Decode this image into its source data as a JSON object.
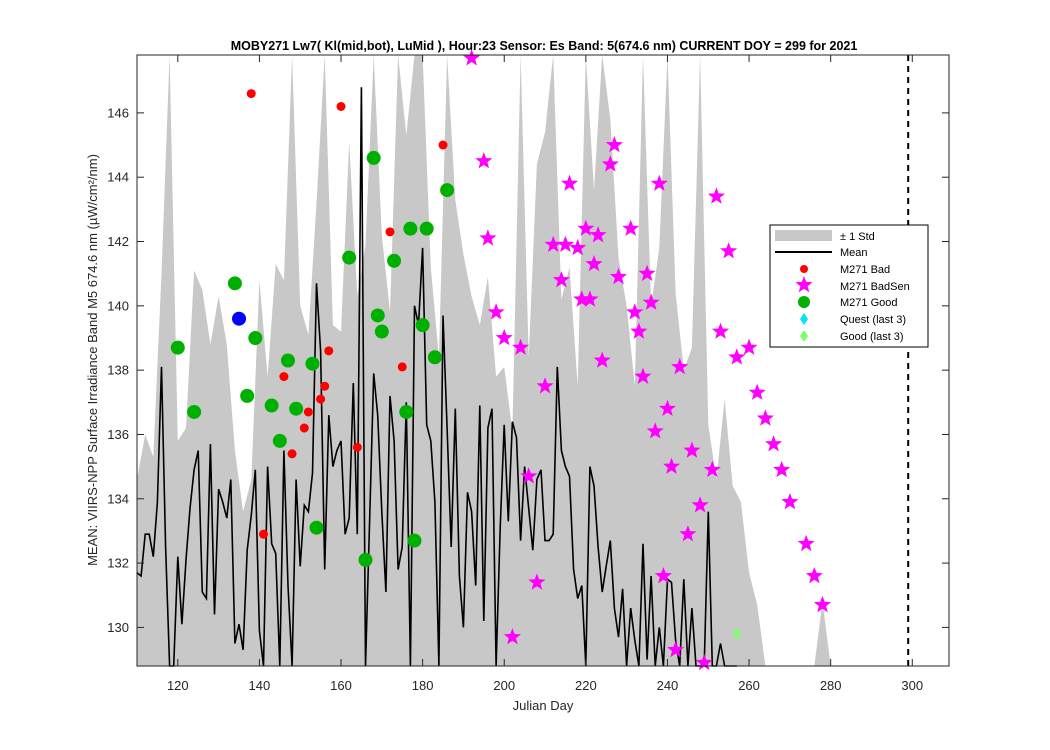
{
  "chart_data": {
    "type": "scatter",
    "title": "MOBY271   Lw7( Kl(mid,bot), LuMid ),    Hour:23 Sensor: Es Band: 5(674.6 nm)   CURRENT DOY = 299 for 2021",
    "xlabel": "Julian Day",
    "ylabel": "MEAN: VIIRS-NPP Surface Irradiance Band M5 674.6 nm (µW/cm²/nm)",
    "xlim": [
      110,
      309
    ],
    "ylim": [
      128.8,
      147.8
    ],
    "xticks": [
      120,
      140,
      160,
      180,
      200,
      220,
      240,
      260,
      280,
      300
    ],
    "yticks": [
      130,
      132,
      134,
      136,
      138,
      140,
      142,
      144,
      146
    ],
    "current_doy": 299,
    "grid": false,
    "legend_position": "right",
    "legend": [
      "± 1 Std",
      "Mean",
      "M271 Bad",
      "M271 BadSen",
      "M271 Good",
      "Quest (last 3)",
      "Good (last 3)"
    ],
    "colors": {
      "std_band": "#c8c8c8",
      "mean": "#000000",
      "bad": "#ff0000",
      "badsen": "#ff00ff",
      "good": "#00b000",
      "quest": "#00e5ee",
      "good_last3": "#7cff6b",
      "highlight": "#0000ff"
    },
    "mean_series": {
      "x": [
        110,
        111,
        112,
        113,
        114,
        115,
        116,
        117,
        118,
        119,
        120,
        121,
        122,
        123,
        124,
        125,
        126,
        127,
        128,
        129,
        130,
        131,
        132,
        133,
        134,
        135,
        136,
        137,
        138,
        139,
        140,
        141,
        142,
        143,
        144,
        145,
        146,
        147,
        148,
        149,
        150,
        151,
        152,
        153,
        154,
        155,
        156,
        157,
        158,
        159,
        160,
        161,
        162,
        163,
        164,
        165,
        166,
        167,
        168,
        169,
        170,
        171,
        172,
        173,
        174,
        175,
        176,
        177,
        178,
        179,
        180,
        181,
        182,
        183,
        184,
        185,
        186,
        187,
        188,
        189,
        190,
        191,
        192,
        193,
        194,
        195,
        196,
        197,
        198,
        199,
        200,
        201,
        202,
        203,
        204,
        205,
        206,
        207,
        208,
        209,
        210,
        211,
        212,
        213,
        214,
        215,
        216,
        217,
        218,
        219,
        220,
        221,
        222,
        223,
        224,
        225,
        226,
        227,
        228,
        229,
        230,
        231,
        232,
        233,
        234,
        235,
        236,
        237,
        238,
        239,
        240,
        241,
        242,
        243,
        244,
        245,
        246,
        247,
        248,
        249,
        250,
        251,
        252,
        253,
        254,
        255,
        256,
        257
      ],
      "y": [
        131.7,
        131.6,
        132.9,
        132.9,
        132.2,
        133.9,
        138.1,
        132.5,
        128.8,
        128.8,
        132.2,
        130.1,
        132.1,
        133.7,
        134.9,
        135.5,
        131.1,
        130.9,
        135.7,
        130.4,
        134.3,
        133.9,
        133.4,
        134.6,
        129.5,
        130.1,
        129.3,
        132.4,
        133.5,
        134.9,
        129.9,
        128.8,
        135.0,
        132.6,
        132.3,
        128.8,
        135.5,
        131.3,
        128.8,
        134.6,
        131.9,
        133.8,
        133.6,
        134.8,
        140.7,
        138.6,
        131.8,
        136.6,
        135.0,
        135.5,
        135.8,
        132.9,
        133.4,
        137.6,
        132.9,
        146.8,
        128.8,
        133.3,
        137.9,
        136.6,
        133.6,
        131.1,
        137.2,
        135.8,
        131.8,
        132.5,
        137.0,
        128.8,
        140.0,
        139.4,
        141.8,
        136.3,
        135.8,
        133.9,
        128.8,
        139.7,
        136.2,
        132.5,
        136.8,
        131.6,
        130.0,
        134.2,
        133.6,
        131.3,
        136.9,
        130.2,
        136.2,
        136.8,
        128.8,
        133.1,
        136.3,
        133.3,
        136.4,
        135.9,
        132.7,
        135.0,
        133.7,
        132.4,
        134.6,
        134.9,
        132.7,
        132.7,
        132.9,
        138.1,
        135.5,
        135.0,
        134.7,
        131.8,
        130.9,
        131.3,
        128.8,
        135.0,
        134.4,
        132.5,
        131.1,
        131.9,
        132.7,
        130.6,
        129.7,
        131.2,
        128.8,
        130.6,
        129.6,
        128.8,
        132.6,
        129.0,
        131.6,
        128.8,
        130.0,
        128.8,
        131.5,
        131.4,
        129.6,
        128.8,
        131.5,
        128.8,
        130.6,
        128.8,
        128.8,
        128.8,
        133.6,
        128.8,
        128.8,
        129.5,
        128.8,
        128.8,
        128.8,
        128.8
      ]
    },
    "std_band": {
      "x": [
        110,
        112,
        114,
        116,
        118,
        120,
        122,
        124,
        126,
        128,
        130,
        132,
        134,
        136,
        138,
        140,
        142,
        144,
        146,
        148,
        150,
        152,
        154,
        156,
        158,
        160,
        162,
        164,
        166,
        168,
        170,
        172,
        174,
        176,
        178,
        180,
        182,
        184,
        186,
        188,
        190,
        192,
        194,
        196,
        198,
        200,
        202,
        204,
        206,
        208,
        210,
        212,
        214,
        216,
        218,
        220,
        222,
        224,
        226,
        228,
        230,
        232,
        234,
        236,
        238,
        240,
        242,
        244,
        246,
        248,
        250,
        252,
        254,
        256,
        258,
        260,
        262,
        264,
        266,
        268,
        270,
        272,
        274,
        276,
        278,
        280
      ],
      "upper": [
        134.6,
        136.0,
        135.3,
        141.0,
        147.8,
        135.8,
        136.2,
        141.1,
        140.5,
        138.8,
        140.3,
        138.8,
        135.5,
        133.6,
        134.6,
        140.8,
        137.8,
        141.3,
        140.8,
        147.8,
        140.0,
        139.1,
        143.2,
        147.8,
        139.4,
        139.2,
        145.1,
        140.3,
        141.9,
        147.8,
        142.2,
        139.8,
        147.8,
        145.3,
        147.8,
        147.8,
        141.2,
        138.4,
        147.8,
        143.3,
        141.6,
        140.3,
        139.4,
        140.9,
        137.8,
        138.1,
        136.1,
        147.8,
        138.4,
        144.4,
        145.4,
        147.8,
        140.2,
        141.2,
        137.5,
        147.8,
        143.6,
        147.8,
        145.8,
        141.5,
        140.0,
        137.5,
        147.8,
        140.0,
        141.8,
        147.8,
        140.4,
        138.0,
        138.7,
        147.8,
        136.3,
        134.6,
        137.1,
        134.4,
        133.9,
        131.7,
        130.7,
        128.8,
        128.8,
        128.8,
        128.8,
        128.8,
        128.8,
        128.8,
        130.8,
        128.8
      ],
      "lower": [
        128.8,
        128.8,
        128.8,
        128.8,
        128.8,
        128.8,
        128.8,
        128.8,
        128.8,
        128.8,
        128.8,
        128.8,
        128.8,
        128.8,
        128.8,
        128.8,
        128.8,
        128.8,
        128.8,
        128.8,
        128.8,
        128.8,
        128.8,
        128.8,
        128.8,
        128.8,
        128.8,
        128.8,
        128.8,
        128.8,
        128.8,
        128.8,
        128.8,
        128.8,
        128.8,
        128.8,
        128.8,
        128.8,
        128.8,
        128.8,
        128.8,
        128.8,
        128.8,
        128.8,
        128.8,
        128.8,
        128.8,
        128.8,
        128.8,
        128.8,
        128.8,
        128.8,
        128.8,
        128.8,
        128.8,
        128.8,
        128.8,
        128.8,
        128.8,
        128.8,
        128.8,
        128.8,
        128.8,
        128.8,
        128.8,
        128.8,
        128.8,
        128.8,
        128.8,
        128.8,
        128.8,
        128.8,
        128.8,
        128.8,
        128.8,
        128.8,
        128.8,
        128.8,
        128.8,
        128.8,
        128.8,
        128.8,
        128.8,
        128.8,
        128.8,
        128.8
      ]
    },
    "bad_points": {
      "x": [
        138,
        141,
        146,
        148,
        151,
        152,
        155,
        156,
        157,
        160,
        164,
        172,
        175,
        185
      ],
      "y": [
        146.6,
        132.9,
        137.8,
        135.4,
        136.2,
        136.7,
        137.1,
        137.5,
        138.6,
        146.2,
        135.6,
        142.3,
        138.1,
        145.0
      ]
    },
    "badsen_points": {
      "x": [
        192,
        195,
        196,
        198,
        200,
        202,
        204,
        206,
        208,
        210,
        212,
        214,
        215,
        216,
        218,
        219,
        220,
        221,
        222,
        223,
        224,
        226,
        227,
        228,
        231,
        232,
        233,
        234,
        235,
        236,
        237,
        238,
        239,
        240,
        241,
        242,
        243,
        245,
        246,
        248,
        249,
        251,
        252,
        253,
        255,
        257,
        260,
        262,
        264,
        266,
        268,
        270,
        274,
        276,
        278
      ],
      "y": [
        147.7,
        144.5,
        142.1,
        139.8,
        139.0,
        129.7,
        138.7,
        134.7,
        131.4,
        137.5,
        141.9,
        140.8,
        141.9,
        143.8,
        141.8,
        140.2,
        142.4,
        140.2,
        141.3,
        142.2,
        138.3,
        144.4,
        145.0,
        140.9,
        142.4,
        139.8,
        139.2,
        137.8,
        141.0,
        140.1,
        136.1,
        143.8,
        131.6,
        136.8,
        135.0,
        129.3,
        138.1,
        132.9,
        135.5,
        133.8,
        128.9,
        134.9,
        143.4,
        139.2,
        141.7,
        138.4,
        138.7,
        137.3,
        136.5,
        135.7,
        134.9,
        133.9,
        132.6,
        131.6,
        130.7
      ]
    },
    "good_points": {
      "x": [
        120,
        124,
        134,
        137,
        139,
        143,
        145,
        147,
        149,
        153,
        154,
        162,
        166,
        168,
        169,
        170,
        173,
        176,
        177,
        178,
        180,
        181,
        183,
        186
      ],
      "y": [
        138.7,
        136.7,
        140.7,
        137.2,
        139.0,
        136.9,
        135.8,
        138.3,
        136.8,
        138.2,
        133.1,
        141.5,
        132.1,
        144.6,
        139.7,
        139.2,
        141.4,
        136.7,
        142.4,
        132.7,
        139.4,
        142.4,
        138.4,
        143.6
      ]
    },
    "highlight_point": {
      "x": 135,
      "y": 139.6
    },
    "good_last3_points": {
      "x": [
        257
      ],
      "y": [
        129.8
      ]
    },
    "quest_points": {
      "x": [],
      "y": []
    }
  }
}
